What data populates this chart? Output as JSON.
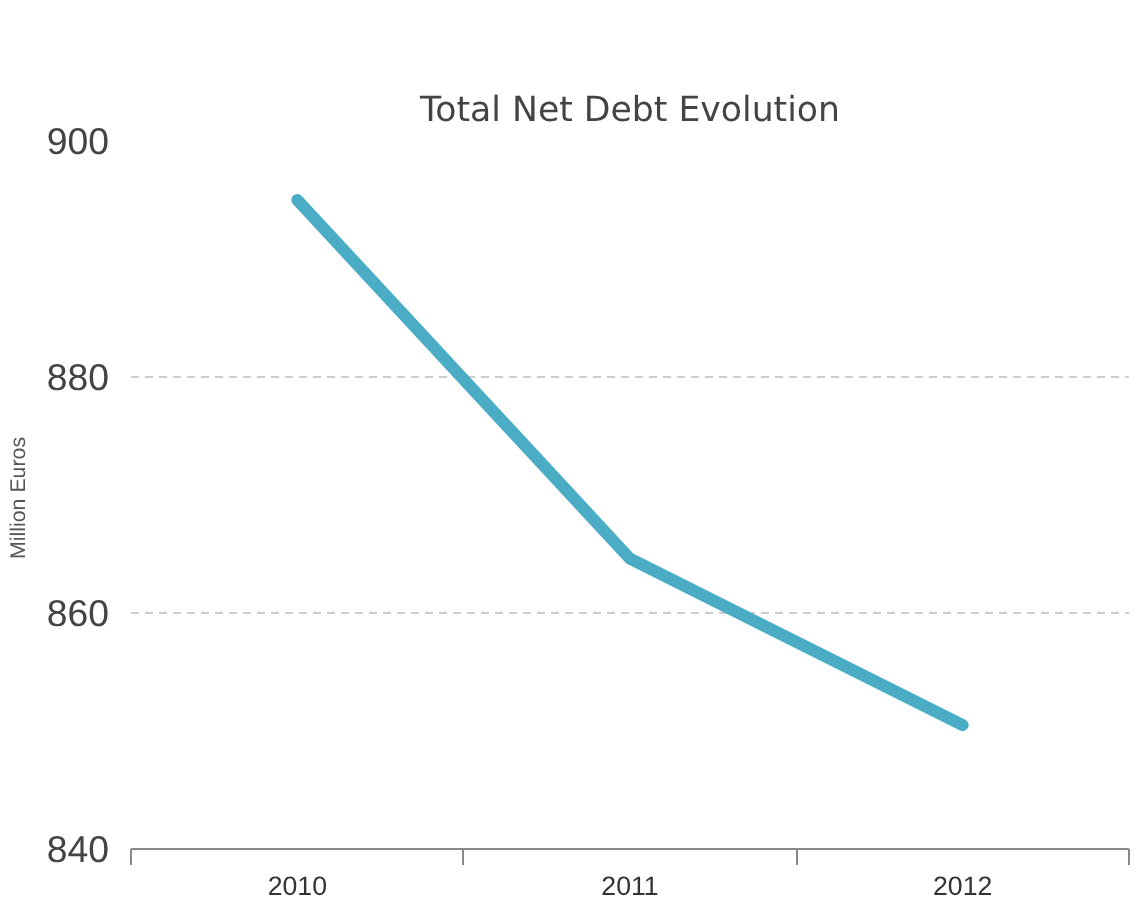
{
  "chart_data": {
    "type": "line",
    "title": "Total Net Debt Evolution",
    "ylabel": "Million  Euros",
    "categories": [
      "2010",
      "2011",
      "2012"
    ],
    "series": [
      {
        "color": "#4bacc6",
        "values": [
          895,
          864.6,
          850.5
        ]
      }
    ],
    "ylim": [
      840,
      900
    ],
    "yticks": [
      840,
      860,
      880,
      900
    ],
    "grid": "y",
    "marker": "none",
    "line_style": "solid"
  }
}
